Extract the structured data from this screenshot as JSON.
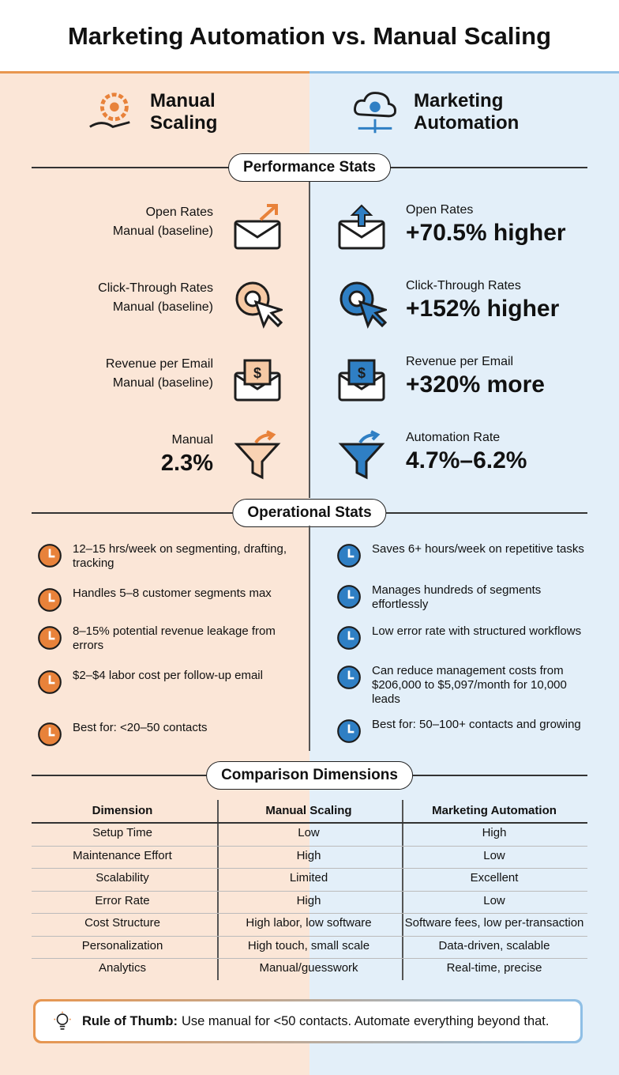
{
  "title": "Marketing Automation vs. Manual Scaling",
  "manual": {
    "heading": "Manual Scaling"
  },
  "automation": {
    "heading": "Marketing Automation"
  },
  "performance": {
    "heading": "Performance Stats",
    "manual": [
      {
        "label": "Open Rates",
        "value": "Manual (baseline)"
      },
      {
        "label": "Click-Through Rates",
        "value": "Manual (baseline)"
      },
      {
        "label": "Revenue per Email",
        "value": "Manual (baseline)"
      },
      {
        "label": "Manual",
        "value": "2.3%"
      }
    ],
    "automation": [
      {
        "label": "Open Rates",
        "value": "+70.5% higher"
      },
      {
        "label": "Click-Through Rates",
        "value": "+152% higher"
      },
      {
        "label": "Revenue per Email",
        "value": "+320% more"
      },
      {
        "label": "Automation Rate",
        "value": "4.7%–6.2%"
      }
    ]
  },
  "operational": {
    "heading": "Operational Stats",
    "manual": [
      "12–15 hrs/week on segmenting, drafting, tracking",
      "Handles 5–8 customer segments max",
      "8–15% potential revenue leakage from errors",
      "$2–$4 labor cost per follow-up email",
      "Best for: <20–50 contacts"
    ],
    "automation": [
      "Saves 6+ hours/week on repetitive tasks",
      "Manages hundreds of segments effortlessly",
      "Low error rate with structured workflows",
      "Can reduce management costs from $206,000 to $5,097/month for 10,000 leads",
      "Best for: 50–100+ contacts and growing"
    ]
  },
  "comparison": {
    "heading": "Comparison Dimensions",
    "columns": [
      "Dimension",
      "Manual Scaling",
      "Marketing Automation"
    ],
    "rows": [
      [
        "Setup Time",
        "Low",
        "High"
      ],
      [
        "Maintenance Effort",
        "High",
        "Low"
      ],
      [
        "Scalability",
        "Limited",
        "Excellent"
      ],
      [
        "Error Rate",
        "High",
        "Low"
      ],
      [
        "Cost Structure",
        "High labor, low software",
        "Software fees, low per-transaction"
      ],
      [
        "Personalization",
        "High touch, small scale",
        "Data-driven, scalable"
      ],
      [
        "Analytics",
        "Manual/guesswork",
        "Real-time, precise"
      ]
    ]
  },
  "rule": {
    "label": "Rule of Thumb:",
    "text": "Use manual for <50 contacts. Automate everything beyond that."
  }
}
